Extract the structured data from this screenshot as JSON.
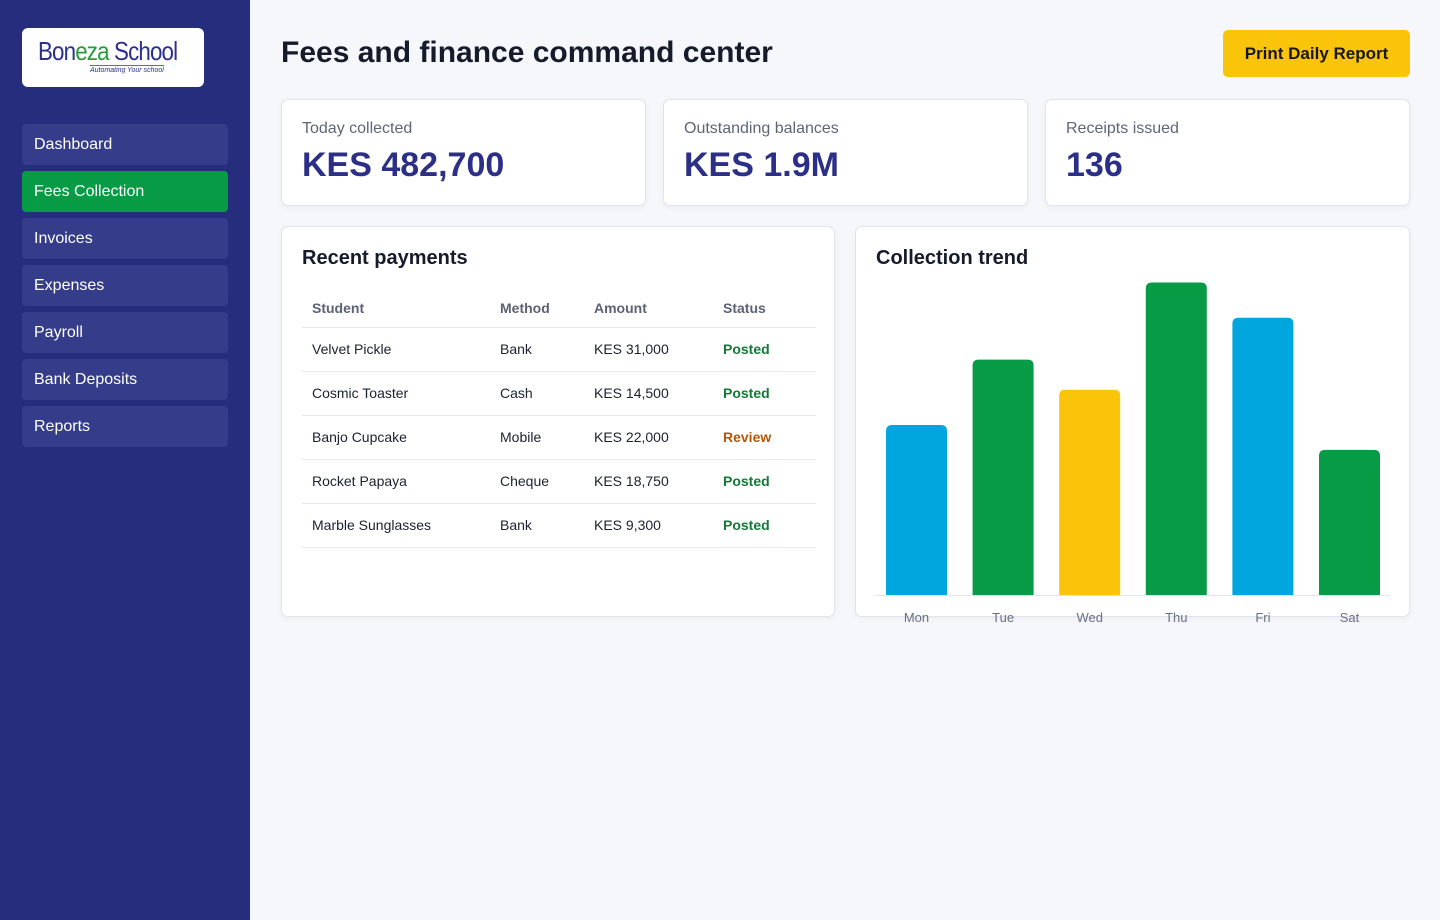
{
  "brand": {
    "logo_part1": "Bon",
    "logo_part2": "eza",
    "logo_part3": " School",
    "tagline": "Automating Your school"
  },
  "sidebar": {
    "items": [
      {
        "label": "Dashboard",
        "active": false
      },
      {
        "label": "Fees Collection",
        "active": true
      },
      {
        "label": "Invoices",
        "active": false
      },
      {
        "label": "Expenses",
        "active": false
      },
      {
        "label": "Payroll",
        "active": false
      },
      {
        "label": "Bank Deposits",
        "active": false
      },
      {
        "label": "Reports",
        "active": false
      }
    ]
  },
  "header": {
    "title": "Fees and finance command center",
    "print_button": "Print Daily Report"
  },
  "stats": [
    {
      "label": "Today collected",
      "value": "KES 482,700"
    },
    {
      "label": "Outstanding balances",
      "value": "KES 1.9M"
    },
    {
      "label": "Receipts issued",
      "value": "136"
    }
  ],
  "payments": {
    "title": "Recent payments",
    "columns": [
      "Student",
      "Method",
      "Amount",
      "Status"
    ],
    "rows": [
      {
        "student": "Velvet Pickle",
        "method": "Bank",
        "amount": "KES 31,000",
        "status": "Posted"
      },
      {
        "student": "Cosmic Toaster",
        "method": "Cash",
        "amount": "KES 14,500",
        "status": "Posted"
      },
      {
        "student": "Banjo Cupcake",
        "method": "Mobile",
        "amount": "KES 22,000",
        "status": "Review"
      },
      {
        "student": "Rocket Papaya",
        "method": "Cheque",
        "amount": "KES 18,750",
        "status": "Posted"
      },
      {
        "student": "Marble Sunglasses",
        "method": "Bank",
        "amount": "KES 9,300",
        "status": "Posted"
      }
    ]
  },
  "colors": {
    "sidebar_bg": "#252d7c",
    "nav_item_bg": "#353d8a",
    "nav_active_bg": "#079b45",
    "accent_yellow": "#f9c40a",
    "posted": "#137a36",
    "review": "#b5570b"
  },
  "chart_data": {
    "type": "bar",
    "title": "Collection trend",
    "categories": [
      "Mon",
      "Tue",
      "Wed",
      "Thu",
      "Fri",
      "Sat"
    ],
    "values": [
      130,
      180,
      157,
      239,
      212,
      111
    ],
    "ylim": [
      0,
      260
    ],
    "grid": false,
    "bar_colors": [
      "#00a6dd",
      "#079b45",
      "#f9c40a",
      "#079b45",
      "#00a6dd",
      "#079b45"
    ]
  }
}
